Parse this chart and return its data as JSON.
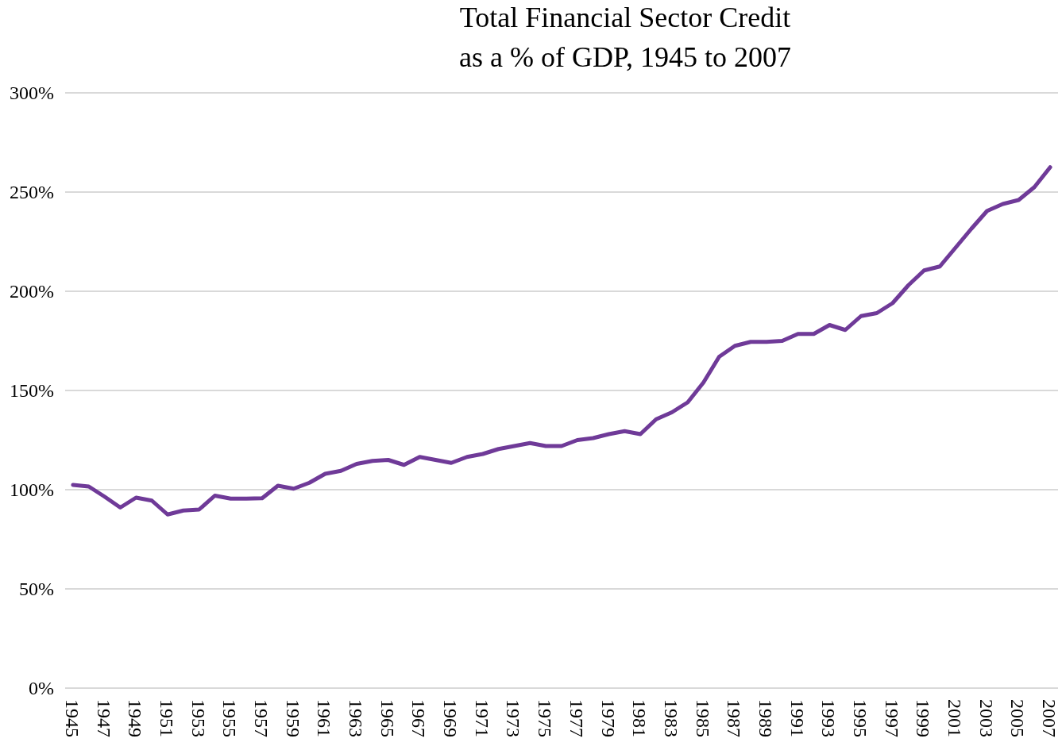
{
  "chart_data": {
    "type": "line",
    "title": "Total Financial Sector Credit\nas a % of GDP, 1945 to 2007",
    "categories": [
      "1945",
      null,
      "1947",
      null,
      "1949",
      null,
      "1951",
      null,
      "1953",
      null,
      "1955",
      null,
      "1957",
      null,
      "1959",
      null,
      "1961",
      null,
      "1963",
      null,
      "1965",
      null,
      "1967",
      null,
      "1969",
      null,
      "1971",
      null,
      "1973",
      null,
      "1975",
      null,
      "1977",
      null,
      "1979",
      null,
      "1981",
      null,
      "1983",
      null,
      "1985",
      null,
      "1987",
      null,
      "1989",
      null,
      "1991",
      null,
      "1993",
      null,
      "1995",
      null,
      "1997",
      null,
      "1999",
      null,
      "2001",
      null,
      "2003",
      null,
      "2005",
      null,
      "2007"
    ],
    "series": [
      {
        "color": "#6f3a98",
        "values": [
          102.4,
          101.6,
          96.5,
          91,
          96,
          94.5,
          87.5,
          89.5,
          90,
          97,
          95.5,
          95.5,
          95.7,
          102,
          100.5,
          103.5,
          108,
          109.5,
          113,
          114.5,
          115,
          112.5,
          116.5,
          115,
          113.5,
          116.5,
          118,
          120.5,
          122,
          123.5,
          122,
          122,
          125,
          126,
          128,
          129.5,
          128,
          135.5,
          139,
          144,
          154,
          167,
          172.5,
          174.5,
          174.5,
          175,
          178.5,
          178.5,
          183,
          180.5,
          187.5,
          189,
          194,
          203,
          210.5,
          212.5,
          222,
          231.5,
          240.5,
          244,
          246,
          252.5,
          262.5
        ]
      }
    ],
    "ylim": [
      0,
      300
    ],
    "yticks": [
      {
        "value": 0,
        "label": "0%"
      },
      {
        "value": 50,
        "label": "50%"
      },
      {
        "value": 100,
        "label": "100%"
      },
      {
        "value": 150,
        "label": "150%"
      },
      {
        "value": 200,
        "label": "200%"
      },
      {
        "value": 250,
        "label": "250%"
      },
      {
        "value": 300,
        "label": "300%"
      }
    ],
    "grid": "y",
    "marker": "none",
    "line_style": "solid"
  }
}
